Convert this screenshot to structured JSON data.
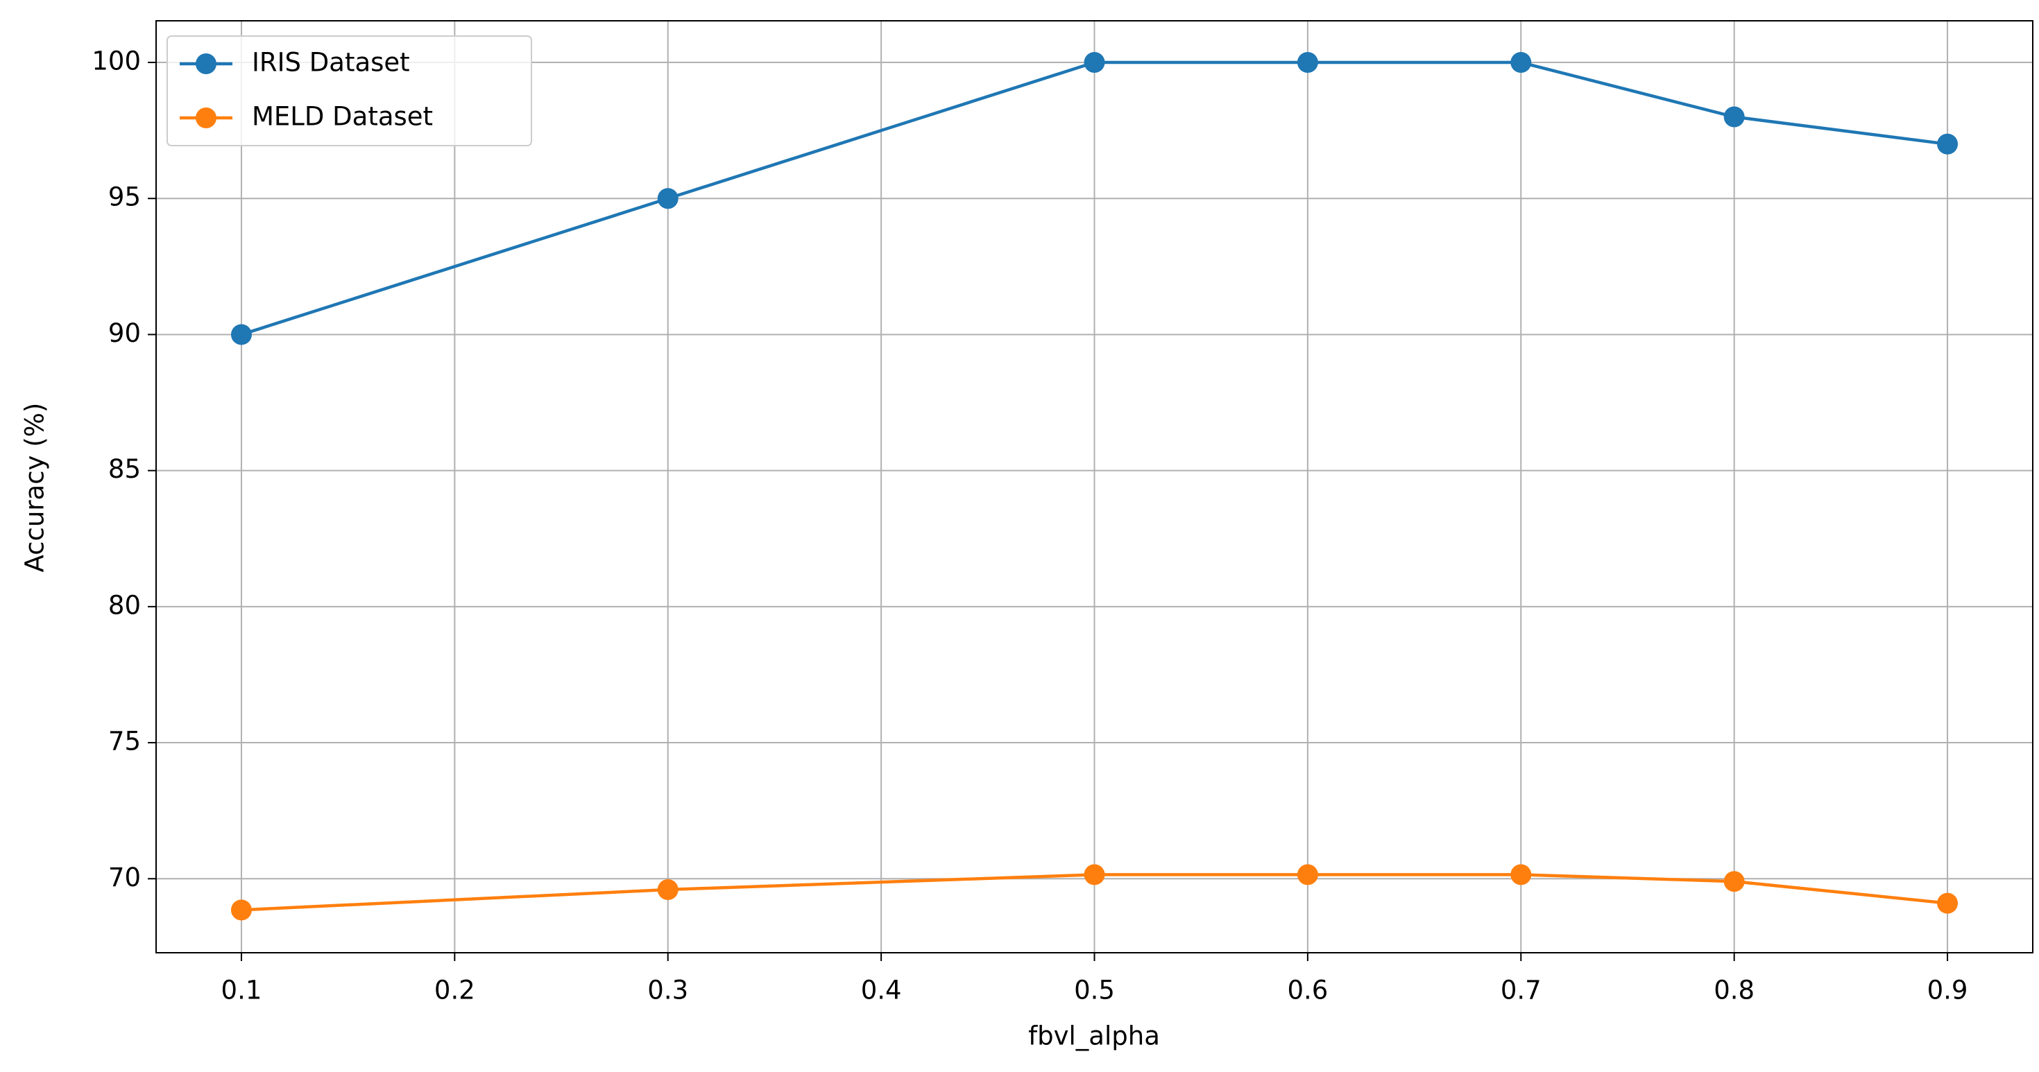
{
  "chart_data": {
    "type": "line",
    "x_label": "fbvl_alpha",
    "y_label": "Accuracy (%)",
    "x": [
      0.1,
      0.3,
      0.5,
      0.6,
      0.7,
      0.8,
      0.9
    ],
    "series": [
      {
        "name": "IRIS Dataset",
        "color": "#1f77b4",
        "values": [
          90,
          95,
          100,
          100,
          100,
          98,
          97
        ]
      },
      {
        "name": "MELD Dataset",
        "color": "#ff7f0e",
        "values": [
          68.85,
          69.6,
          70.15,
          70.15,
          70.15,
          69.9,
          69.1
        ]
      }
    ],
    "xlim": [
      0.06,
      0.94
    ],
    "xticks": [
      0.1,
      0.2,
      0.3,
      0.4,
      0.5,
      0.6,
      0.7,
      0.8,
      0.9
    ],
    "ylim": [
      67.28,
      101.53
    ],
    "yticks": [
      70,
      75,
      80,
      85,
      90,
      95,
      100
    ],
    "grid": true,
    "legend": "upper left"
  }
}
